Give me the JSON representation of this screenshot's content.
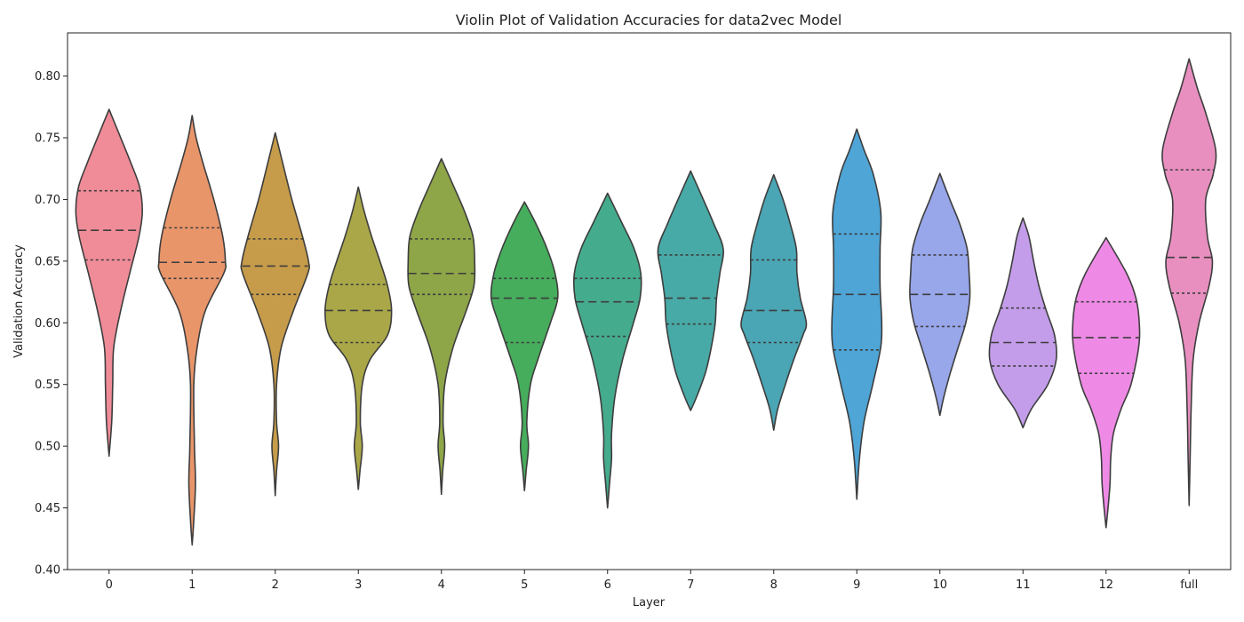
{
  "chart_data": {
    "type": "violin",
    "title": "Violin Plot of Validation Accuracies for data2vec Model",
    "xlabel": "Layer",
    "ylabel": "Validation Accuracy",
    "ylim": [
      0.4,
      0.835
    ],
    "yticks": [
      0.4,
      0.45,
      0.5,
      0.55,
      0.6,
      0.65,
      0.7,
      0.75,
      0.8
    ],
    "grid": false,
    "categories": [
      "0",
      "1",
      "2",
      "3",
      "4",
      "5",
      "6",
      "7",
      "8",
      "9",
      "10",
      "11",
      "12",
      "full"
    ],
    "series": [
      {
        "category": "0",
        "color": "#f08c98",
        "min": 0.492,
        "max": 0.773,
        "q1": 0.651,
        "median": 0.675,
        "q3": 0.707,
        "profile": [
          [
            0.492,
            0.0
          ],
          [
            0.52,
            0.08
          ],
          [
            0.55,
            0.11
          ],
          [
            0.58,
            0.14
          ],
          [
            0.61,
            0.35
          ],
          [
            0.64,
            0.62
          ],
          [
            0.67,
            0.9
          ],
          [
            0.69,
            1.0
          ],
          [
            0.71,
            0.92
          ],
          [
            0.73,
            0.65
          ],
          [
            0.75,
            0.35
          ],
          [
            0.773,
            0.0
          ]
        ]
      },
      {
        "category": "1",
        "color": "#e8956a",
        "min": 0.42,
        "max": 0.768,
        "q1": 0.636,
        "median": 0.649,
        "q3": 0.677,
        "profile": [
          [
            0.42,
            0.0
          ],
          [
            0.44,
            0.05
          ],
          [
            0.47,
            0.1
          ],
          [
            0.5,
            0.07
          ],
          [
            0.55,
            0.05
          ],
          [
            0.58,
            0.15
          ],
          [
            0.61,
            0.4
          ],
          [
            0.64,
            0.95
          ],
          [
            0.65,
            1.0
          ],
          [
            0.67,
            0.92
          ],
          [
            0.7,
            0.65
          ],
          [
            0.73,
            0.32
          ],
          [
            0.75,
            0.12
          ],
          [
            0.768,
            0.0
          ]
        ]
      },
      {
        "category": "2",
        "color": "#c69c4a",
        "min": 0.46,
        "max": 0.754,
        "q1": 0.623,
        "median": 0.646,
        "q3": 0.668,
        "profile": [
          [
            0.46,
            0.0
          ],
          [
            0.48,
            0.04
          ],
          [
            0.5,
            0.1
          ],
          [
            0.52,
            0.04
          ],
          [
            0.55,
            0.04
          ],
          [
            0.58,
            0.18
          ],
          [
            0.61,
            0.55
          ],
          [
            0.64,
            0.98
          ],
          [
            0.65,
            1.0
          ],
          [
            0.67,
            0.82
          ],
          [
            0.7,
            0.5
          ],
          [
            0.73,
            0.22
          ],
          [
            0.754,
            0.0
          ]
        ]
      },
      {
        "category": "3",
        "color": "#aaa748",
        "min": 0.465,
        "max": 0.71,
        "q1": 0.584,
        "median": 0.61,
        "q3": 0.631,
        "profile": [
          [
            0.465,
            0.0
          ],
          [
            0.48,
            0.05
          ],
          [
            0.5,
            0.12
          ],
          [
            0.52,
            0.06
          ],
          [
            0.55,
            0.12
          ],
          [
            0.57,
            0.35
          ],
          [
            0.59,
            0.88
          ],
          [
            0.61,
            1.0
          ],
          [
            0.63,
            0.88
          ],
          [
            0.65,
            0.65
          ],
          [
            0.67,
            0.4
          ],
          [
            0.69,
            0.18
          ],
          [
            0.71,
            0.0
          ]
        ]
      },
      {
        "category": "4",
        "color": "#8ea548",
        "min": 0.461,
        "max": 0.733,
        "q1": 0.623,
        "median": 0.64,
        "q3": 0.668,
        "profile": [
          [
            0.461,
            0.0
          ],
          [
            0.48,
            0.04
          ],
          [
            0.5,
            0.1
          ],
          [
            0.52,
            0.05
          ],
          [
            0.55,
            0.1
          ],
          [
            0.58,
            0.35
          ],
          [
            0.61,
            0.75
          ],
          [
            0.63,
            0.98
          ],
          [
            0.65,
            1.0
          ],
          [
            0.67,
            0.95
          ],
          [
            0.69,
            0.7
          ],
          [
            0.71,
            0.38
          ],
          [
            0.733,
            0.0
          ]
        ]
      },
      {
        "category": "5",
        "color": "#46ad5c",
        "min": 0.464,
        "max": 0.698,
        "q1": 0.584,
        "median": 0.62,
        "q3": 0.636,
        "profile": [
          [
            0.464,
            0.0
          ],
          [
            0.48,
            0.05
          ],
          [
            0.5,
            0.12
          ],
          [
            0.52,
            0.07
          ],
          [
            0.55,
            0.18
          ],
          [
            0.57,
            0.4
          ],
          [
            0.6,
            0.78
          ],
          [
            0.62,
            1.0
          ],
          [
            0.64,
            0.92
          ],
          [
            0.66,
            0.68
          ],
          [
            0.68,
            0.35
          ],
          [
            0.698,
            0.0
          ]
        ]
      },
      {
        "category": "6",
        "color": "#45ab8d",
        "min": 0.45,
        "max": 0.705,
        "q1": 0.589,
        "median": 0.617,
        "q3": 0.636,
        "profile": [
          [
            0.45,
            0.0
          ],
          [
            0.47,
            0.06
          ],
          [
            0.49,
            0.12
          ],
          [
            0.51,
            0.12
          ],
          [
            0.54,
            0.22
          ],
          [
            0.57,
            0.45
          ],
          [
            0.6,
            0.78
          ],
          [
            0.62,
            0.98
          ],
          [
            0.64,
            1.0
          ],
          [
            0.66,
            0.8
          ],
          [
            0.68,
            0.45
          ],
          [
            0.705,
            0.0
          ]
        ]
      },
      {
        "category": "7",
        "color": "#48aaa6",
        "min": 0.529,
        "max": 0.723,
        "q1": 0.599,
        "median": 0.62,
        "q3": 0.655,
        "profile": [
          [
            0.529,
            0.0
          ],
          [
            0.54,
            0.18
          ],
          [
            0.56,
            0.45
          ],
          [
            0.58,
            0.62
          ],
          [
            0.6,
            0.74
          ],
          [
            0.62,
            0.78
          ],
          [
            0.64,
            0.88
          ],
          [
            0.66,
            0.98
          ],
          [
            0.68,
            0.7
          ],
          [
            0.7,
            0.38
          ],
          [
            0.723,
            0.0
          ]
        ]
      },
      {
        "category": "8",
        "color": "#4aa5b4",
        "min": 0.513,
        "max": 0.72,
        "q1": 0.584,
        "median": 0.61,
        "q3": 0.651,
        "profile": [
          [
            0.513,
            0.0
          ],
          [
            0.53,
            0.12
          ],
          [
            0.55,
            0.35
          ],
          [
            0.57,
            0.6
          ],
          [
            0.59,
            0.88
          ],
          [
            0.6,
            0.98
          ],
          [
            0.62,
            0.8
          ],
          [
            0.64,
            0.7
          ],
          [
            0.66,
            0.68
          ],
          [
            0.68,
            0.5
          ],
          [
            0.7,
            0.28
          ],
          [
            0.72,
            0.0
          ]
        ]
      },
      {
        "category": "9",
        "color": "#4ea5d6",
        "min": 0.457,
        "max": 0.757,
        "q1": 0.578,
        "median": 0.623,
        "q3": 0.672,
        "profile": [
          [
            0.457,
            0.0
          ],
          [
            0.49,
            0.08
          ],
          [
            0.52,
            0.22
          ],
          [
            0.55,
            0.48
          ],
          [
            0.58,
            0.72
          ],
          [
            0.6,
            0.75
          ],
          [
            0.63,
            0.7
          ],
          [
            0.66,
            0.7
          ],
          [
            0.69,
            0.72
          ],
          [
            0.72,
            0.5
          ],
          [
            0.74,
            0.22
          ],
          [
            0.757,
            0.0
          ]
        ]
      },
      {
        "category": "10",
        "color": "#98a6ea",
        "min": 0.525,
        "max": 0.721,
        "q1": 0.597,
        "median": 0.623,
        "q3": 0.655,
        "profile": [
          [
            0.525,
            0.0
          ],
          [
            0.54,
            0.12
          ],
          [
            0.56,
            0.32
          ],
          [
            0.58,
            0.55
          ],
          [
            0.6,
            0.78
          ],
          [
            0.62,
            0.9
          ],
          [
            0.64,
            0.88
          ],
          [
            0.66,
            0.82
          ],
          [
            0.68,
            0.6
          ],
          [
            0.7,
            0.3
          ],
          [
            0.721,
            0.0
          ]
        ]
      },
      {
        "category": "11",
        "color": "#c39de9",
        "min": 0.515,
        "max": 0.685,
        "q1": 0.565,
        "median": 0.584,
        "q3": 0.612,
        "profile": [
          [
            0.515,
            0.0
          ],
          [
            0.53,
            0.25
          ],
          [
            0.55,
            0.75
          ],
          [
            0.57,
            1.0
          ],
          [
            0.59,
            0.95
          ],
          [
            0.61,
            0.7
          ],
          [
            0.63,
            0.48
          ],
          [
            0.65,
            0.32
          ],
          [
            0.67,
            0.18
          ],
          [
            0.685,
            0.0
          ]
        ]
      },
      {
        "category": "12",
        "color": "#ee8ae6",
        "min": 0.434,
        "max": 0.669,
        "q1": 0.559,
        "median": 0.588,
        "q3": 0.617,
        "profile": [
          [
            0.434,
            0.0
          ],
          [
            0.45,
            0.06
          ],
          [
            0.47,
            0.12
          ],
          [
            0.49,
            0.14
          ],
          [
            0.51,
            0.22
          ],
          [
            0.53,
            0.45
          ],
          [
            0.55,
            0.75
          ],
          [
            0.58,
            0.98
          ],
          [
            0.6,
            1.0
          ],
          [
            0.62,
            0.9
          ],
          [
            0.64,
            0.62
          ],
          [
            0.669,
            0.0
          ]
        ]
      },
      {
        "category": "full",
        "color": "#e88fc0",
        "min": 0.452,
        "max": 0.814,
        "q1": 0.624,
        "median": 0.653,
        "q3": 0.724,
        "profile": [
          [
            0.452,
            0.0
          ],
          [
            0.49,
            0.03
          ],
          [
            0.53,
            0.06
          ],
          [
            0.57,
            0.12
          ],
          [
            0.6,
            0.3
          ],
          [
            0.63,
            0.6
          ],
          [
            0.65,
            0.7
          ],
          [
            0.67,
            0.55
          ],
          [
            0.7,
            0.5
          ],
          [
            0.72,
            0.72
          ],
          [
            0.74,
            0.8
          ],
          [
            0.77,
            0.5
          ],
          [
            0.79,
            0.25
          ],
          [
            0.814,
            0.0
          ]
        ]
      }
    ]
  }
}
